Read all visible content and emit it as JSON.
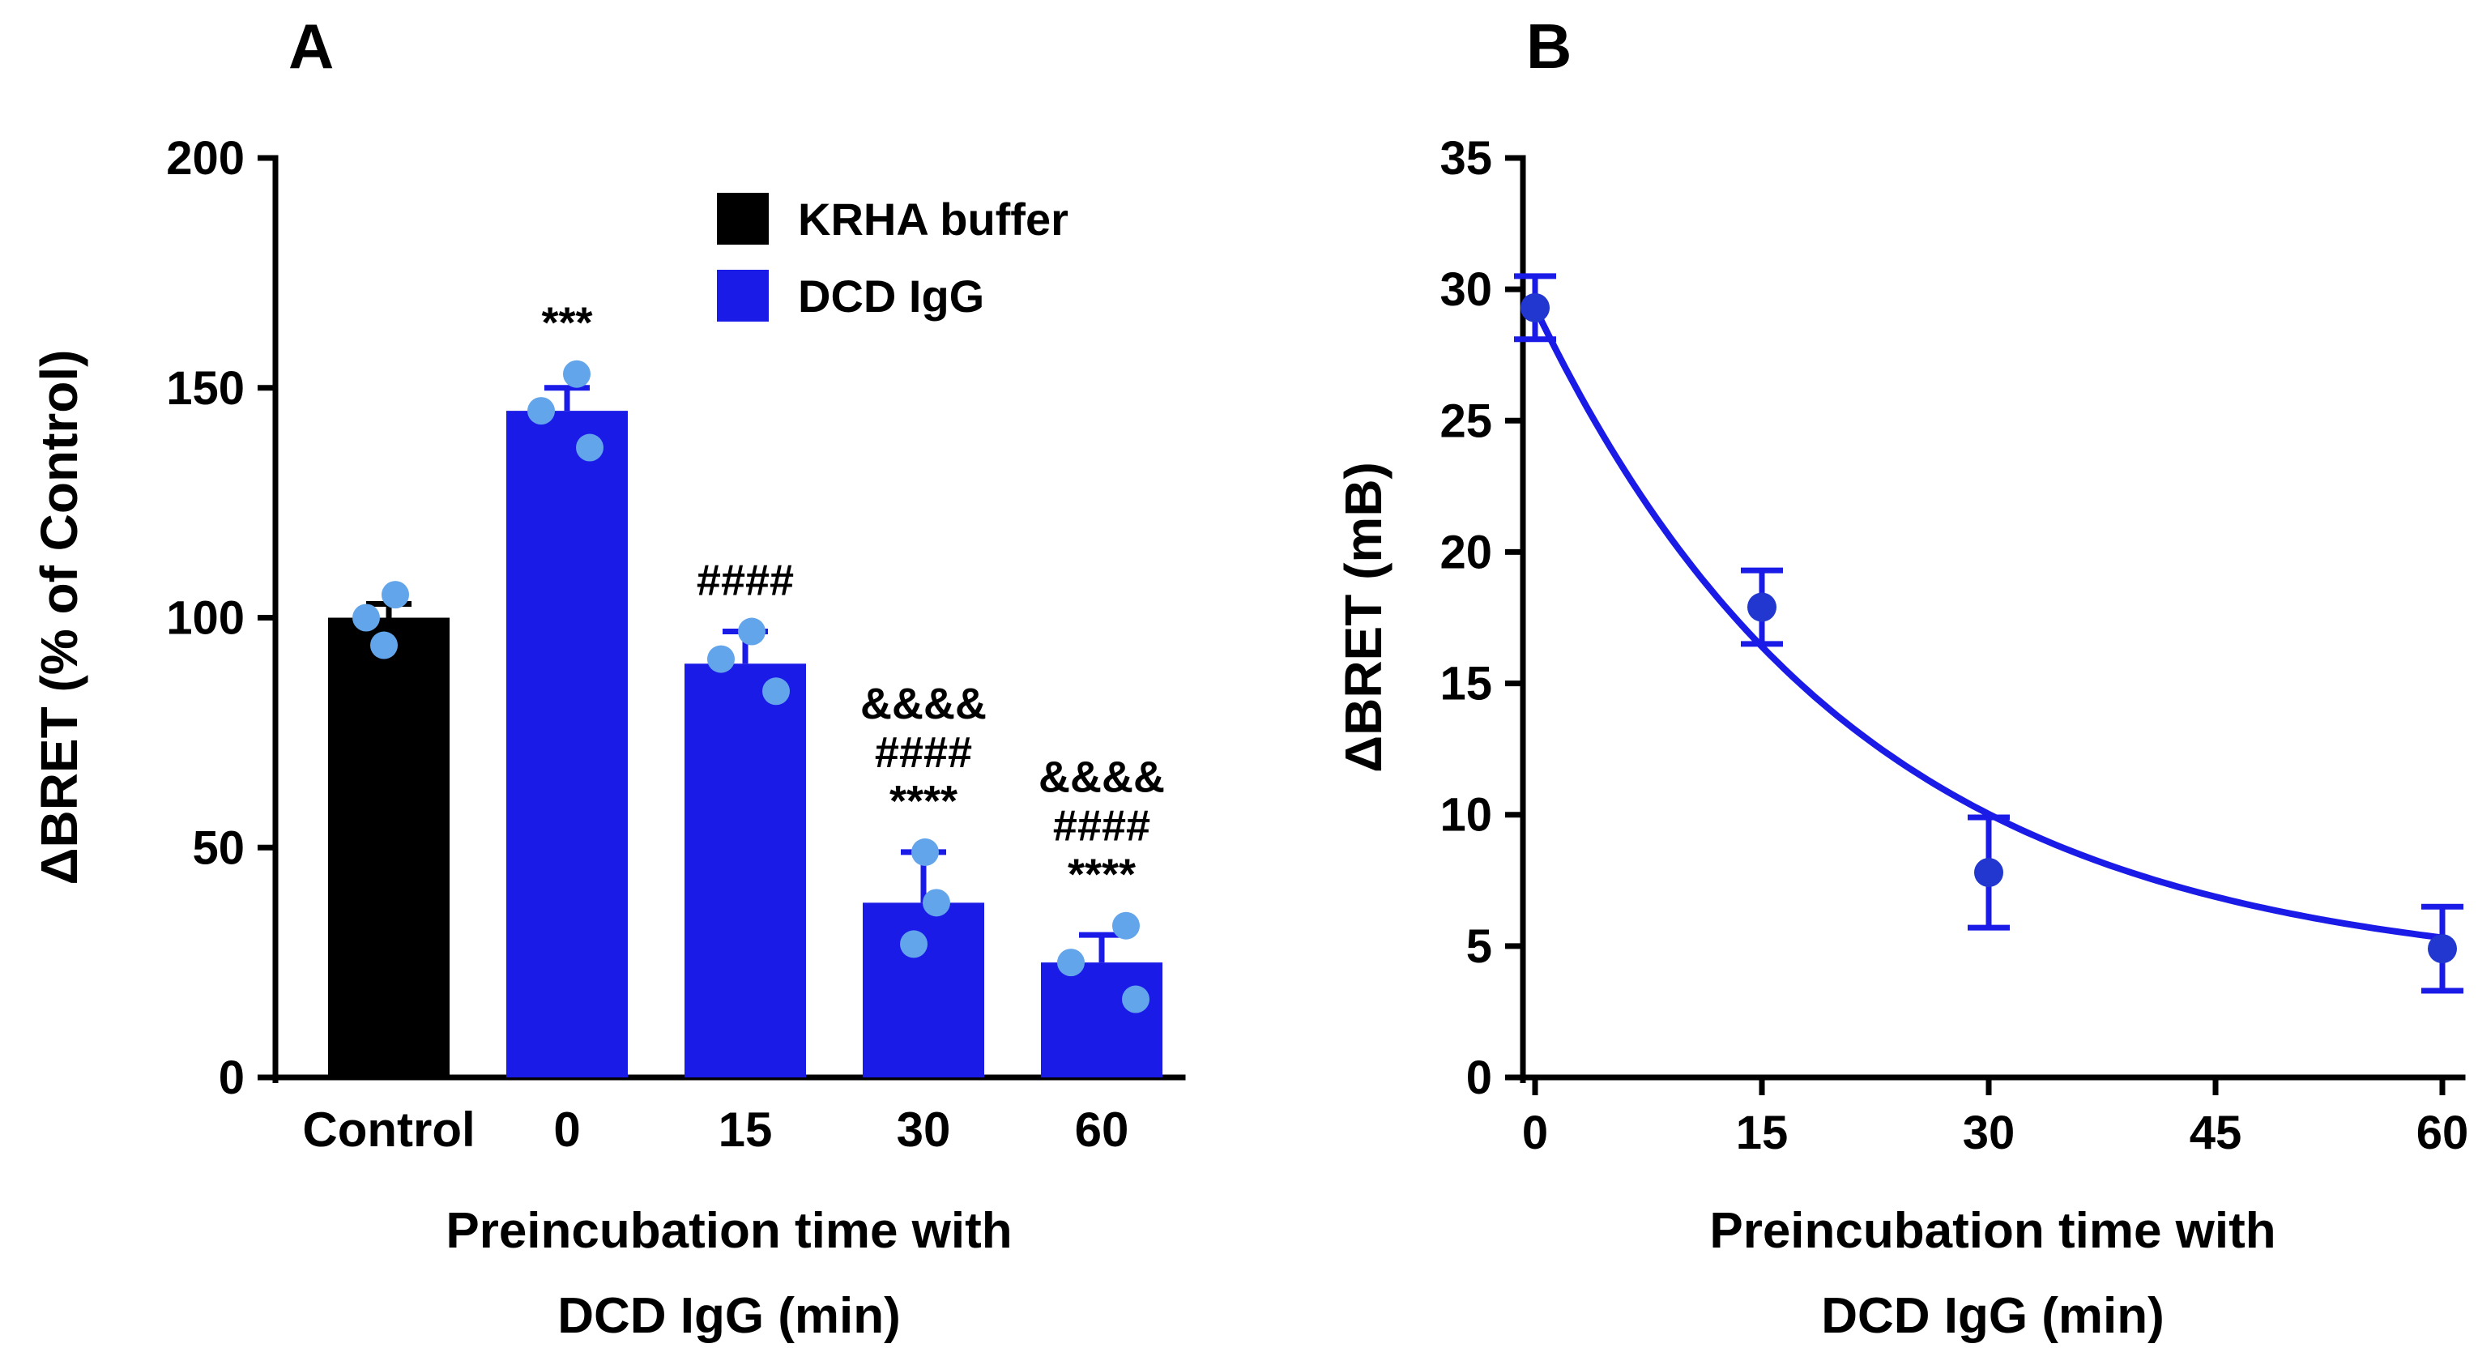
{
  "figure": {
    "background": "#ffffff"
  },
  "chart_data": [
    {
      "type": "bar",
      "panel_label": "A",
      "ylabel": "ΔBRET  (% of Control)",
      "xlabel_lines": [
        "Preincubation time with",
        "DCD  IgG (min)"
      ],
      "ylim": [
        0,
        200
      ],
      "yticks": [
        0,
        50,
        100,
        150,
        200
      ],
      "point_color": "#63a5ea",
      "bars": [
        {
          "label": "Control",
          "value": 100,
          "error": 3,
          "color": "#000000",
          "points": [
            [
              -28,
              100
            ],
            [
              8,
              105
            ],
            [
              -6,
              94
            ]
          ],
          "annotation": null
        },
        {
          "label": "0",
          "value": 145,
          "error": 5,
          "color": "#1b1be8",
          "points": [
            [
              -32,
              145
            ],
            [
              12,
              153
            ],
            [
              28,
              137
            ]
          ],
          "annotation": [
            "***"
          ]
        },
        {
          "label": "15",
          "value": 90,
          "error": 7,
          "color": "#1b1be8",
          "points": [
            [
              -30,
              91
            ],
            [
              8,
              97
            ],
            [
              38,
              84
            ]
          ],
          "annotation": [
            "####"
          ]
        },
        {
          "label": "30",
          "value": 38,
          "error": 11,
          "color": "#1b1be8",
          "points": [
            [
              2,
              49
            ],
            [
              -12,
              29
            ],
            [
              16,
              38
            ]
          ],
          "annotation": [
            "&&&&",
            "####",
            "****"
          ]
        },
        {
          "label": "60",
          "value": 25,
          "error": 6,
          "color": "#1b1be8",
          "points": [
            [
              -38,
              25
            ],
            [
              30,
              33
            ],
            [
              42,
              17
            ]
          ],
          "annotation": [
            "&&&&",
            "####",
            "****"
          ]
        }
      ],
      "legend": [
        {
          "label": "KRHA buffer",
          "color": "#000000"
        },
        {
          "label": "DCD  IgG",
          "color": "#1b1be8"
        }
      ]
    },
    {
      "type": "scatter",
      "panel_label": "B",
      "ylabel": "ΔBRET  (mB)",
      "xlabel_lines": [
        "Preincubation time with",
        "DCD  IgG (min)"
      ],
      "ylim": [
        0,
        35
      ],
      "yticks": [
        0,
        5,
        10,
        15,
        20,
        25,
        30,
        35
      ],
      "xticks": [
        0,
        15,
        30,
        45,
        60
      ],
      "xlim": [
        0,
        60
      ],
      "color": "#1b1be8",
      "point_fill": "#2137cf",
      "points": [
        {
          "x": 0,
          "y": 29.3,
          "err": 1.2
        },
        {
          "x": 15,
          "y": 17.9,
          "err": 1.4
        },
        {
          "x": 30,
          "y": 7.8,
          "err": 2.1
        },
        {
          "x": 60,
          "y": 4.9,
          "err": 1.6
        }
      ],
      "fit": {
        "model": "one_phase_decay",
        "y0": 29.3,
        "plateau": 3.8,
        "k": 0.047
      }
    }
  ]
}
